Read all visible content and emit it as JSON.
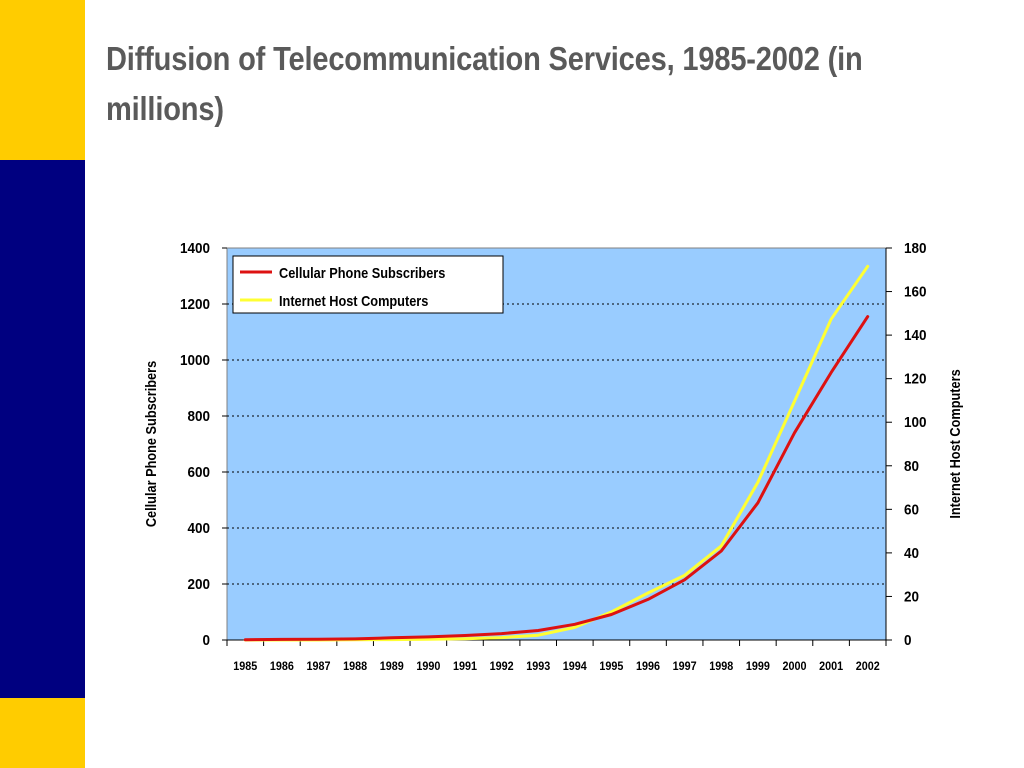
{
  "slide": {
    "title": "Diffusion of Telecommunication Services, 1985-2002 (in millions)",
    "colors": {
      "yellow_bar": "#ffcc00",
      "navy_bar": "#000080",
      "plot_bg": "#99ccff",
      "title_text": "#5a5a5a"
    }
  },
  "chart_data": {
    "type": "line",
    "title": "",
    "x": [
      "1985",
      "1986",
      "1987",
      "1988",
      "1989",
      "1990",
      "1991",
      "1992",
      "1993",
      "1994",
      "1995",
      "1996",
      "1997",
      "1998",
      "1999",
      "2000",
      "2001",
      "2002"
    ],
    "ylabel_left": "Cellular Phone Subscribers",
    "ylabel_right": "Internet Host Computers",
    "ylim_left": [
      0,
      1400
    ],
    "ylim_right": [
      0,
      180
    ],
    "yticks_left": [
      0,
      200,
      400,
      600,
      800,
      1000,
      1200,
      1400
    ],
    "yticks_right": [
      0,
      20,
      40,
      60,
      80,
      100,
      120,
      140,
      160,
      180
    ],
    "grid": true,
    "legend_position": "top-left",
    "series": [
      {
        "name": "Cellular Phone Subscribers",
        "axis": "left",
        "color": "#dd1111",
        "values": [
          1,
          2,
          3,
          4,
          8,
          11,
          16,
          23,
          34,
          56,
          91,
          145,
          215,
          318,
          490,
          740,
          955,
          1155
        ]
      },
      {
        "name": "Internet Host Computers",
        "axis": "right",
        "color": "#ffff33",
        "values": [
          0,
          0,
          0,
          0.1,
          0.2,
          0.3,
          0.6,
          1.1,
          2.2,
          5.8,
          12.9,
          21.6,
          29.7,
          43.2,
          72.4,
          109.6,
          147.3,
          171.6
        ]
      }
    ]
  }
}
